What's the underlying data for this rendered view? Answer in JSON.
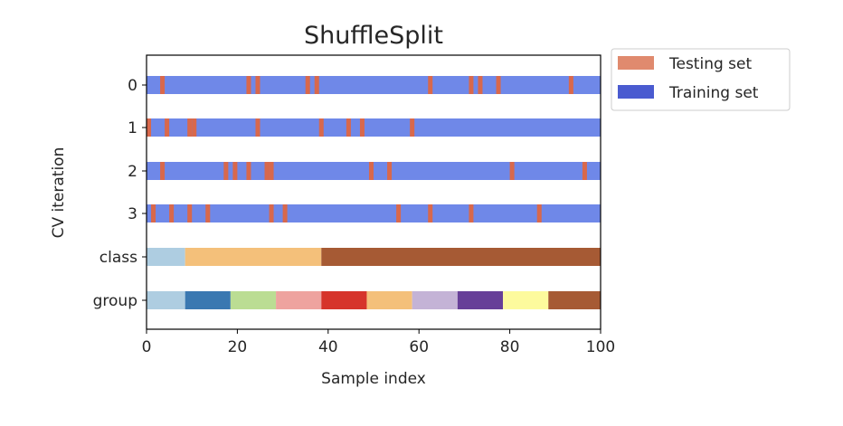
{
  "chart_data": {
    "type": "bar",
    "title": "ShuffleSplit",
    "xlabel": "Sample index",
    "ylabel": "CV iteration",
    "xlim": [
      0,
      100
    ],
    "x_ticks": [
      0,
      20,
      40,
      60,
      80,
      100
    ],
    "grid": false,
    "legend_position": "outside-right",
    "legend": [
      {
        "label": "Testing set",
        "color": "#e08a6e"
      },
      {
        "label": "Training set",
        "color": "#4a5bd0"
      }
    ],
    "rows": [
      {
        "label": "0",
        "kind": "split",
        "train_color": "#6f88e8",
        "test_color": "#d8684c",
        "test_indices": [
          3,
          22,
          24,
          35,
          37,
          62,
          71,
          73,
          77,
          93
        ]
      },
      {
        "label": "1",
        "kind": "split",
        "train_color": "#6f88e8",
        "test_color": "#d8684c",
        "test_indices": [
          0,
          4,
          9,
          10,
          24,
          38,
          44,
          47,
          58
        ]
      },
      {
        "label": "2",
        "kind": "split",
        "train_color": "#6f88e8",
        "test_color": "#d8684c",
        "test_indices": [
          3,
          17,
          19,
          22,
          26,
          27,
          49,
          53,
          80,
          96
        ]
      },
      {
        "label": "3",
        "kind": "split",
        "train_color": "#6f88e8",
        "test_color": "#d8684c",
        "test_indices": [
          1,
          5,
          9,
          13,
          27,
          30,
          55,
          62,
          71,
          86
        ]
      },
      {
        "label": "class",
        "kind": "segments",
        "segments": [
          {
            "start": 0,
            "end": 8.5,
            "color": "#aecde1"
          },
          {
            "start": 8.5,
            "end": 38.5,
            "color": "#f4c07a"
          },
          {
            "start": 38.5,
            "end": 100,
            "color": "#a65a34"
          }
        ]
      },
      {
        "label": "group",
        "kind": "segments",
        "segments": [
          {
            "start": 0,
            "end": 8.5,
            "color": "#aecde1"
          },
          {
            "start": 8.5,
            "end": 18.5,
            "color": "#3a78b1"
          },
          {
            "start": 18.5,
            "end": 28.5,
            "color": "#bbdd93"
          },
          {
            "start": 28.5,
            "end": 38.5,
            "color": "#eea39f"
          },
          {
            "start": 38.5,
            "end": 48.5,
            "color": "#d6342b"
          },
          {
            "start": 48.5,
            "end": 58.5,
            "color": "#f4c07a"
          },
          {
            "start": 58.5,
            "end": 68.5,
            "color": "#c4b3d6"
          },
          {
            "start": 68.5,
            "end": 78.5,
            "color": "#673f98"
          },
          {
            "start": 78.5,
            "end": 88.5,
            "color": "#fdfa9d"
          },
          {
            "start": 88.5,
            "end": 100,
            "color": "#a65a34"
          }
        ]
      }
    ]
  }
}
